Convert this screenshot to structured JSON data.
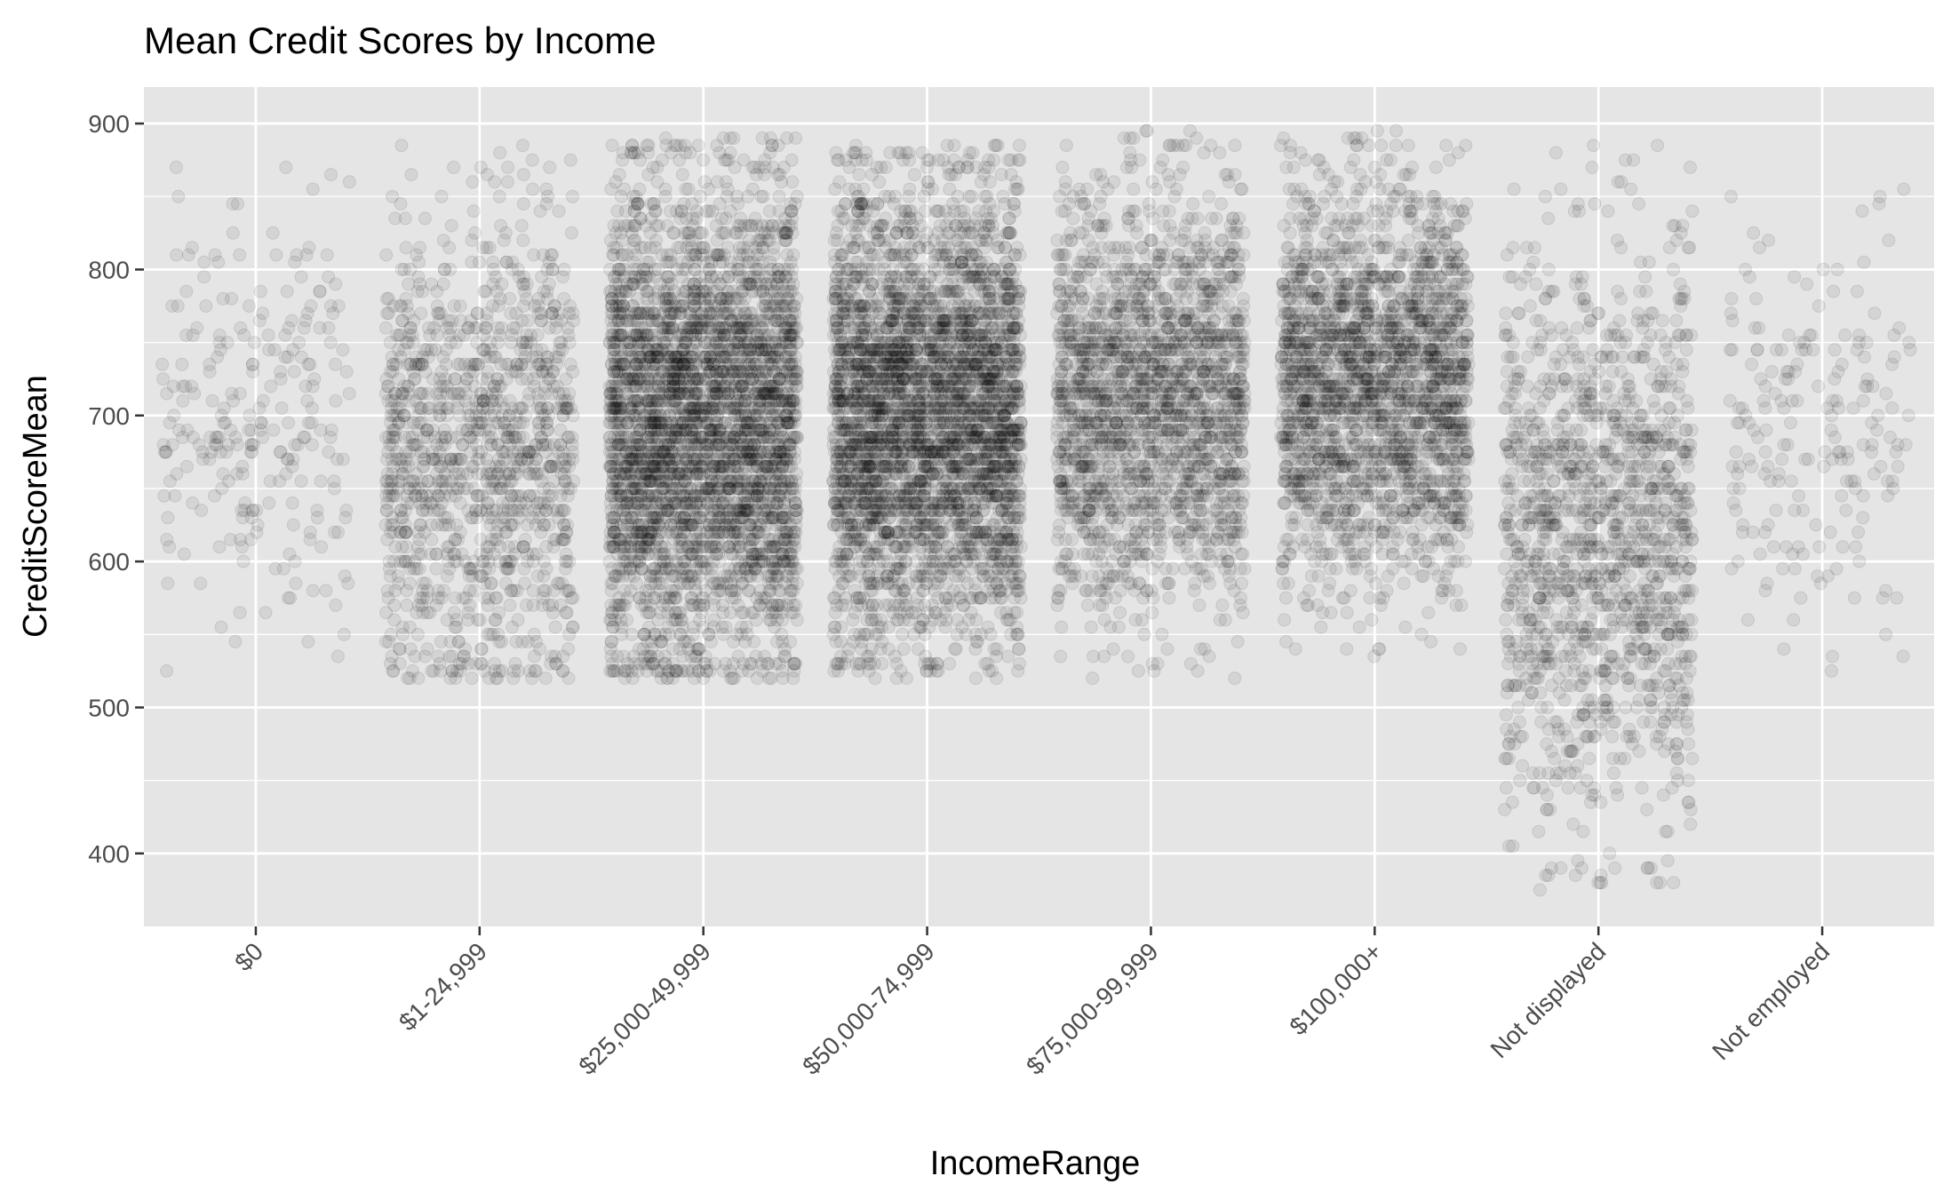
{
  "chart_data": {
    "type": "scatter",
    "title": "Mean Credit Scores by Income",
    "xlabel": "IncomeRange",
    "ylabel": "CreditScoreMean",
    "categories": [
      "$0",
      "$1-24,999",
      "$25,000-49,999",
      "$50,000-74,999",
      "$75,000-99,999",
      "$100,000+",
      "Not displayed",
      "Not employed"
    ],
    "ylim": [
      350,
      925
    ],
    "yticks": [
      400,
      500,
      600,
      700,
      800,
      900
    ],
    "grid": true,
    "jitter": true,
    "point_color": "#000000",
    "panel_color": "#e5e5e5",
    "groups": [
      {
        "category": "$0",
        "count": 250,
        "range": [
          520,
          870
        ],
        "center": 700,
        "spread": 75
      },
      {
        "category": "$1-24,999",
        "count": 1200,
        "range": [
          520,
          885
        ],
        "center": 670,
        "spread": 80
      },
      {
        "category": "$25,000-49,999",
        "count": 3500,
        "range": [
          520,
          890
        ],
        "center": 690,
        "spread": 80
      },
      {
        "category": "$50,000-74,999",
        "count": 3500,
        "range": [
          520,
          885
        ],
        "center": 700,
        "spread": 75
      },
      {
        "category": "$75,000-99,999",
        "count": 2000,
        "range": [
          520,
          895
        ],
        "center": 710,
        "spread": 70
      },
      {
        "category": "$100,000+",
        "count": 2200,
        "range": [
          520,
          895
        ],
        "center": 720,
        "spread": 65
      },
      {
        "category": "Not displayed",
        "count": 1400,
        "range": [
          375,
          885
        ],
        "center": 620,
        "spread": 95
      },
      {
        "category": "Not employed",
        "count": 200,
        "range": [
          520,
          855
        ],
        "center": 690,
        "spread": 70
      }
    ]
  }
}
